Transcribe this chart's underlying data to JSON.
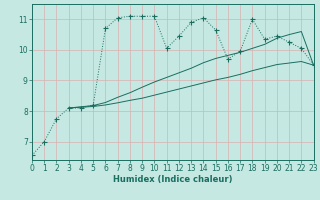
{
  "xlabel": "Humidex (Indice chaleur)",
  "background_color": "#c5e8e2",
  "grid_color": "#d8b0b0",
  "line_color": "#1a6e60",
  "xlim": [
    0,
    23
  ],
  "ylim": [
    6.4,
    11.5
  ],
  "xticks": [
    0,
    1,
    2,
    3,
    4,
    5,
    6,
    7,
    8,
    9,
    10,
    11,
    12,
    13,
    14,
    15,
    16,
    17,
    18,
    19,
    20,
    21,
    22,
    23
  ],
  "yticks": [
    7,
    8,
    9,
    10,
    11
  ],
  "line1_x": [
    0,
    1,
    2,
    3,
    4,
    5,
    6,
    7,
    8,
    9,
    10,
    11,
    12,
    13,
    14,
    15,
    16,
    17,
    18,
    19,
    20,
    21,
    22,
    23
  ],
  "line1_y": [
    6.55,
    7.0,
    7.75,
    8.1,
    8.1,
    8.2,
    10.7,
    11.05,
    11.1,
    11.1,
    11.1,
    10.05,
    10.45,
    10.9,
    11.05,
    10.65,
    9.7,
    9.95,
    11.0,
    10.35,
    10.45,
    10.25,
    10.05,
    9.5
  ],
  "line2_x": [
    3,
    5,
    6,
    7,
    8,
    9,
    10,
    11,
    12,
    13,
    14,
    15,
    16,
    17,
    18,
    19,
    20,
    21,
    22,
    23
  ],
  "line2_y": [
    8.1,
    8.15,
    8.2,
    8.27,
    8.35,
    8.42,
    8.52,
    8.62,
    8.72,
    8.82,
    8.92,
    9.02,
    9.1,
    9.2,
    9.32,
    9.42,
    9.52,
    9.57,
    9.62,
    9.5
  ],
  "line3_x": [
    3,
    5,
    6,
    7,
    8,
    9,
    10,
    11,
    12,
    13,
    14,
    15,
    16,
    17,
    18,
    19,
    20,
    21,
    22,
    23
  ],
  "line3_y": [
    8.1,
    8.18,
    8.28,
    8.45,
    8.6,
    8.78,
    8.95,
    9.1,
    9.25,
    9.4,
    9.58,
    9.72,
    9.82,
    9.92,
    10.05,
    10.18,
    10.38,
    10.5,
    10.6,
    9.5
  ]
}
